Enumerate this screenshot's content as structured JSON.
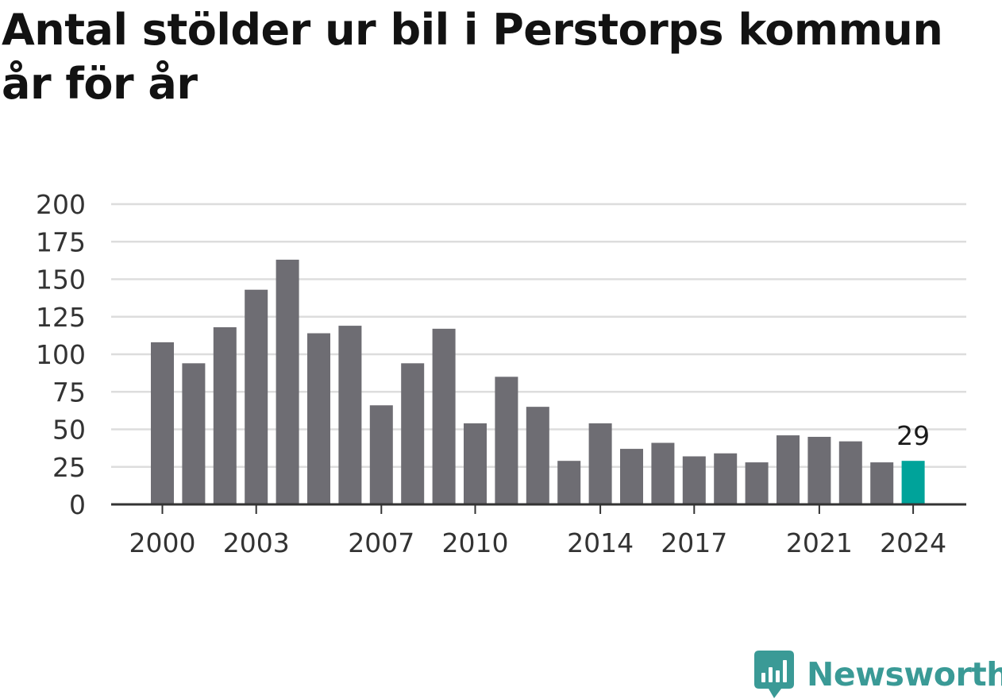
{
  "title": "Antal stölder ur bil i Perstorps kommun år för år",
  "colors": {
    "bar": "#6e6d73",
    "highlight": "#00a39a",
    "grid": "#dddddd",
    "axis": "#333333",
    "brand": "#3a9a96"
  },
  "brand": {
    "name": "Newsworthy",
    "icon": "newsworthy-chart-icon"
  },
  "chart_data": {
    "type": "bar",
    "title": "Antal stölder ur bil i Perstorps kommun år för år",
    "x": [
      2000,
      2001,
      2002,
      2003,
      2004,
      2005,
      2006,
      2007,
      2008,
      2009,
      2010,
      2011,
      2012,
      2013,
      2014,
      2015,
      2016,
      2017,
      2018,
      2019,
      2020,
      2021,
      2022,
      2023,
      2024
    ],
    "values": [
      108,
      94,
      118,
      143,
      163,
      114,
      119,
      66,
      94,
      117,
      54,
      85,
      65,
      29,
      54,
      37,
      41,
      32,
      34,
      28,
      46,
      45,
      42,
      28,
      29
    ],
    "xticks": [
      2000,
      2003,
      2007,
      2010,
      2014,
      2017,
      2021,
      2024
    ],
    "yticks": [
      0,
      25,
      50,
      75,
      100,
      125,
      150,
      175,
      200
    ],
    "ylim": [
      0,
      200
    ],
    "grid": true,
    "highlight_index": 24,
    "value_labels": [
      {
        "index": 24,
        "text": "29"
      }
    ],
    "xlabel": "",
    "ylabel": ""
  }
}
